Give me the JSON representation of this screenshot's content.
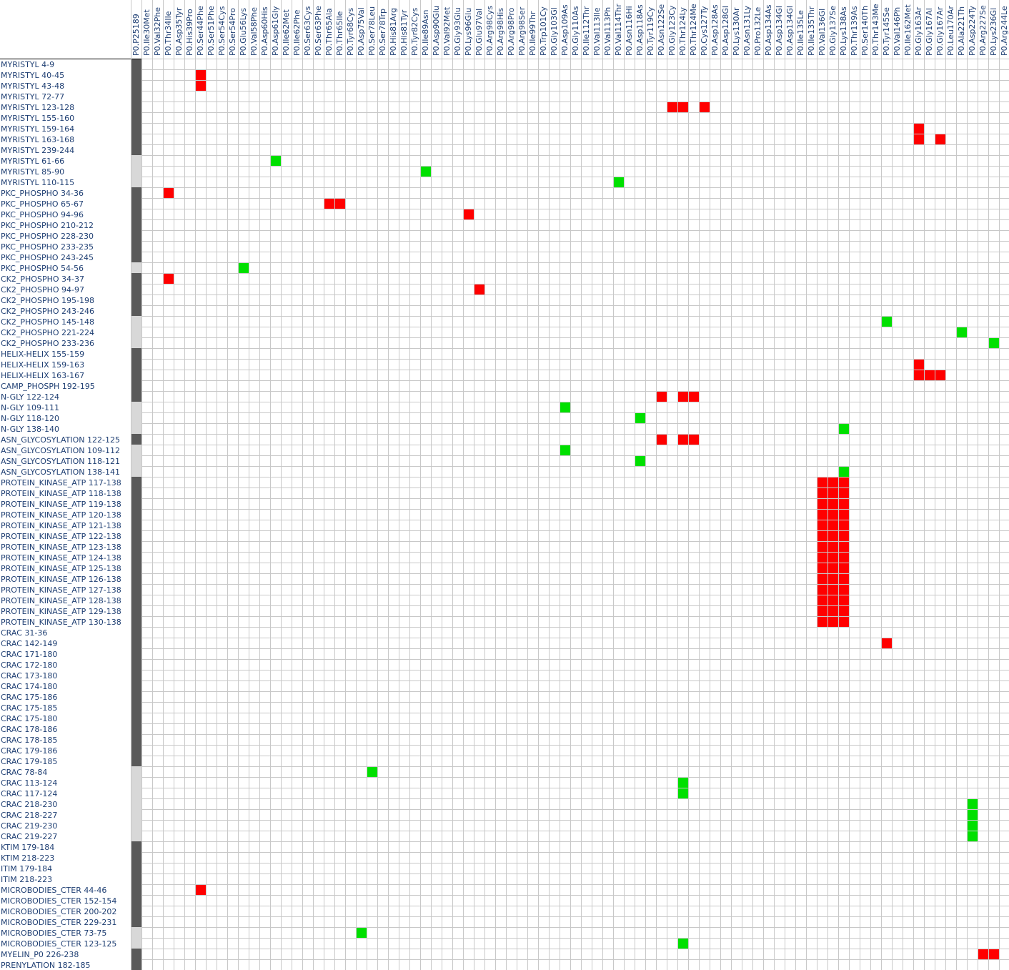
{
  "chart_data": {
    "type": "heatmap",
    "colors": {
      "red": "#ff0000",
      "green": "#00e000",
      "grid": "#c8c8c8",
      "marker_dark": "#5a5a5a",
      "marker_light": "#d8d8d8",
      "label": "#1f3f73"
    },
    "columns": [
      "P0.P25189",
      "P0.Ile30Met",
      "P0.Val32Phe",
      "P0.Thr34Ile",
      "P0.Asp35Tyr",
      "P0.His39Pro",
      "P0.Ser44Phe",
      "P0.Ser51Phe",
      "P0.Ser54Cys",
      "P0.Ser54Pro",
      "P0.Glu56Lys",
      "P0.Val58Phe",
      "P0.Asp60His",
      "P0.Asp61Gly",
      "P0.Ile62Met",
      "P0.Ile62Phe",
      "P0.Ser63Cys",
      "P0.Ser63Phe",
      "P0.Thr65Ala",
      "P0.Thr65Ile",
      "P0.Tyr68Cys",
      "P0.Asp75Val",
      "P0.Ser78Leu",
      "P0.Ser78Trp",
      "P0.His81Arg",
      "P0.His81Tyr",
      "P0.Tyr82Cys",
      "P0.Ile89Asn",
      "P0.Asp90Glu",
      "P0.Val92Met",
      "P0.Gly93Glu",
      "P0.Lys96Glu",
      "P0.Glu97Val",
      "P0.Arg98Cys",
      "P0.Arg98His",
      "P0.Arg98Pro",
      "P0.Arg98Ser",
      "P0.Ile99Thr",
      "P0.Trp101Cy",
      "P0.Gly103Gl",
      "P0.Asp109As",
      "P0.Gly110As",
      "P0.Ile112Thr",
      "P0.Val113Ile",
      "P0.Val113Ph",
      "P0.Val114Thr",
      "P0.Asn116Hi",
      "P0.Asp118As",
      "P0.Tyr119Cy",
      "P0.Asn122Se",
      "P0.Gly123Cy",
      "P0.Thr124Ly",
      "P0.Thr124Me",
      "P0.Cys127Ty",
      "P0.Asp128As",
      "P0.Asp128Gl",
      "P0.Lys130Ar",
      "P0.Asn131Ly",
      "P0.Pro132Le",
      "P0.Asp134As",
      "P0.Asp134Gl",
      "P0.Asp134Gl",
      "P0.Ile135Le",
      "P0.Ile135Thr",
      "P0.Val136Gl",
      "P0.Gly137Se",
      "P0.Lys138As",
      "P0.Thr139As",
      "P0.Ser140Th",
      "P0.Thr143Me",
      "P0.Tyr145Se",
      "P0.Val146Ph",
      "P0.Ile162Met",
      "P0.Gly163Ar",
      "P0.Gly167Al",
      "P0.Gly167Ar",
      "P0.Leu170Ar",
      "P0.Ala221Th",
      "P0.Asp224Ty",
      "P0.Arg227Se",
      "P0.Lys236Gl",
      "P0.Arg244Le"
    ],
    "rows": [
      {
        "label": "MYRISTYL 4-9",
        "marker": "dark",
        "red": [],
        "green": []
      },
      {
        "label": "MYRISTYL 40-45",
        "marker": "dark",
        "red": [
          6
        ],
        "green": []
      },
      {
        "label": "MYRISTYL 43-48",
        "marker": "dark",
        "red": [
          6
        ],
        "green": []
      },
      {
        "label": "MYRISTYL 72-77",
        "marker": "dark",
        "red": [],
        "green": []
      },
      {
        "label": "MYRISTYL 123-128",
        "marker": "dark",
        "red": [
          50,
          51,
          53
        ],
        "green": []
      },
      {
        "label": "MYRISTYL 155-160",
        "marker": "dark",
        "red": [],
        "green": []
      },
      {
        "label": "MYRISTYL 159-164",
        "marker": "dark",
        "red": [
          73
        ],
        "green": []
      },
      {
        "label": "MYRISTYL 163-168",
        "marker": "dark",
        "red": [
          73,
          75
        ],
        "green": []
      },
      {
        "label": "MYRISTYL 239-244",
        "marker": "dark",
        "red": [],
        "green": []
      },
      {
        "label": "MYRISTYL 61-66",
        "marker": "light",
        "red": [],
        "green": [
          13
        ]
      },
      {
        "label": "MYRISTYL 85-90",
        "marker": "light",
        "red": [],
        "green": [
          27
        ]
      },
      {
        "label": "MYRISTYL 110-115",
        "marker": "light",
        "red": [],
        "green": [
          45
        ]
      },
      {
        "label": "PKC_PHOSPHO 34-36",
        "marker": "dark",
        "red": [
          3
        ],
        "green": []
      },
      {
        "label": "PKC_PHOSPHO 65-67",
        "marker": "dark",
        "red": [
          18,
          19
        ],
        "green": []
      },
      {
        "label": "PKC_PHOSPHO 94-96",
        "marker": "dark",
        "red": [
          31
        ],
        "green": []
      },
      {
        "label": "PKC_PHOSPHO 210-212",
        "marker": "dark",
        "red": [],
        "green": []
      },
      {
        "label": "PKC_PHOSPHO 228-230",
        "marker": "dark",
        "red": [],
        "green": []
      },
      {
        "label": "PKC_PHOSPHO 233-235",
        "marker": "dark",
        "red": [],
        "green": []
      },
      {
        "label": "PKC_PHOSPHO 243-245",
        "marker": "dark",
        "red": [],
        "green": []
      },
      {
        "label": "PKC_PHOSPHO 54-56",
        "marker": "light",
        "red": [],
        "green": [
          10
        ]
      },
      {
        "label": "CK2_PHOSPHO 34-37",
        "marker": "dark",
        "red": [
          3
        ],
        "green": []
      },
      {
        "label": "CK2_PHOSPHO 94-97",
        "marker": "dark",
        "red": [
          32
        ],
        "green": []
      },
      {
        "label": "CK2_PHOSPHO 195-198",
        "marker": "dark",
        "red": [],
        "green": []
      },
      {
        "label": "CK2_PHOSPHO 243-246",
        "marker": "dark",
        "red": [],
        "green": []
      },
      {
        "label": "CK2_PHOSPHO 145-148",
        "marker": "light",
        "red": [],
        "green": [
          70
        ]
      },
      {
        "label": "CK2_PHOSPHO 221-224",
        "marker": "light",
        "red": [],
        "green": [
          77
        ]
      },
      {
        "label": "CK2_PHOSPHO 233-236",
        "marker": "light",
        "red": [],
        "green": [
          80
        ]
      },
      {
        "label": "HELIX-HELIX 155-159",
        "marker": "dark",
        "red": [],
        "green": []
      },
      {
        "label": "HELIX-HELIX 159-163",
        "marker": "dark",
        "red": [
          73
        ],
        "green": []
      },
      {
        "label": "HELIX-HELIX 163-167",
        "marker": "dark",
        "red": [
          73,
          74,
          75
        ],
        "green": []
      },
      {
        "label": "CAMP_PHOSPH 192-195",
        "marker": "dark",
        "red": [],
        "green": []
      },
      {
        "label": "N-GLY  122-124",
        "marker": "dark",
        "red": [
          49,
          51,
          52
        ],
        "green": []
      },
      {
        "label": "N-GLY  109-111",
        "marker": "light",
        "red": [],
        "green": [
          40
        ]
      },
      {
        "label": "N-GLY  118-120",
        "marker": "light",
        "red": [],
        "green": [
          47
        ]
      },
      {
        "label": "N-GLY  138-140",
        "marker": "light",
        "red": [],
        "green": [
          66
        ]
      },
      {
        "label": "ASN_GLYCOSYLATION 122-125",
        "marker": "dark",
        "red": [
          49,
          51,
          52
        ],
        "green": []
      },
      {
        "label": "ASN_GLYCOSYLATION 109-112",
        "marker": "light",
        "red": [],
        "green": [
          40
        ]
      },
      {
        "label": "ASN_GLYCOSYLATION 118-121",
        "marker": "light",
        "red": [],
        "green": [
          47
        ]
      },
      {
        "label": "ASN_GLYCOSYLATION 138-141",
        "marker": "light",
        "red": [],
        "green": [
          66
        ]
      },
      {
        "label": "PROTEIN_KINASE_ATP 117-138",
        "marker": "dark",
        "red": [
          64,
          65,
          66
        ],
        "green": []
      },
      {
        "label": "PROTEIN_KINASE_ATP 118-138",
        "marker": "dark",
        "red": [
          64,
          65,
          66
        ],
        "green": []
      },
      {
        "label": "PROTEIN_KINASE_ATP 119-138",
        "marker": "dark",
        "red": [
          64,
          65,
          66
        ],
        "green": []
      },
      {
        "label": "PROTEIN_KINASE_ATP 120-138",
        "marker": "dark",
        "red": [
          64,
          65,
          66
        ],
        "green": []
      },
      {
        "label": "PROTEIN_KINASE_ATP 121-138",
        "marker": "dark",
        "red": [
          64,
          65,
          66
        ],
        "green": []
      },
      {
        "label": "PROTEIN_KINASE_ATP 122-138",
        "marker": "dark",
        "red": [
          64,
          65,
          66
        ],
        "green": []
      },
      {
        "label": "PROTEIN_KINASE_ATP 123-138",
        "marker": "dark",
        "red": [
          64,
          65,
          66
        ],
        "green": []
      },
      {
        "label": "PROTEIN_KINASE_ATP 124-138",
        "marker": "dark",
        "red": [
          64,
          65,
          66
        ],
        "green": []
      },
      {
        "label": "PROTEIN_KINASE_ATP 125-138",
        "marker": "dark",
        "red": [
          64,
          65,
          66
        ],
        "green": []
      },
      {
        "label": "PROTEIN_KINASE_ATP 126-138",
        "marker": "dark",
        "red": [
          64,
          65,
          66
        ],
        "green": []
      },
      {
        "label": "PROTEIN_KINASE_ATP 127-138",
        "marker": "dark",
        "red": [
          64,
          65,
          66
        ],
        "green": []
      },
      {
        "label": "PROTEIN_KINASE_ATP 128-138",
        "marker": "dark",
        "red": [
          64,
          65,
          66
        ],
        "green": []
      },
      {
        "label": "PROTEIN_KINASE_ATP 129-138",
        "marker": "dark",
        "red": [
          64,
          65,
          66
        ],
        "green": []
      },
      {
        "label": "PROTEIN_KINASE_ATP 130-138",
        "marker": "dark",
        "red": [
          64,
          65,
          66
        ],
        "green": []
      },
      {
        "label": "CRAC 31-36",
        "marker": "dark",
        "red": [],
        "green": []
      },
      {
        "label": "CRAC 142-149",
        "marker": "dark",
        "red": [
          70
        ],
        "green": []
      },
      {
        "label": "CRAC 171-180",
        "marker": "dark",
        "red": [],
        "green": []
      },
      {
        "label": "CRAC 172-180",
        "marker": "dark",
        "red": [],
        "green": []
      },
      {
        "label": "CRAC 173-180",
        "marker": "dark",
        "red": [],
        "green": []
      },
      {
        "label": "CRAC 174-180",
        "marker": "dark",
        "red": [],
        "green": []
      },
      {
        "label": "CRAC 175-186",
        "marker": "dark",
        "red": [],
        "green": []
      },
      {
        "label": "CRAC 175-185",
        "marker": "dark",
        "red": [],
        "green": []
      },
      {
        "label": "CRAC 175-180",
        "marker": "dark",
        "red": [],
        "green": []
      },
      {
        "label": "CRAC 178-186",
        "marker": "dark",
        "red": [],
        "green": []
      },
      {
        "label": "CRAC 178-185",
        "marker": "dark",
        "red": [],
        "green": []
      },
      {
        "label": "CRAC 179-186",
        "marker": "dark",
        "red": [],
        "green": []
      },
      {
        "label": "CRAC 179-185",
        "marker": "dark",
        "red": [],
        "green": []
      },
      {
        "label": "CRAC 78-84",
        "marker": "light",
        "red": [],
        "green": [
          22
        ]
      },
      {
        "label": "CRAC 113-124",
        "marker": "light",
        "red": [],
        "green": [
          51
        ]
      },
      {
        "label": "CRAC 117-124",
        "marker": "light",
        "red": [],
        "green": [
          51
        ]
      },
      {
        "label": "CRAC 218-230",
        "marker": "light",
        "red": [],
        "green": [
          78
        ]
      },
      {
        "label": "CRAC 218-227",
        "marker": "light",
        "red": [],
        "green": [
          78
        ]
      },
      {
        "label": "CRAC 219-230",
        "marker": "light",
        "red": [],
        "green": [
          78
        ]
      },
      {
        "label": "CRAC 219-227",
        "marker": "light",
        "red": [],
        "green": [
          78
        ]
      },
      {
        "label": "KTIM 179-184",
        "marker": "dark",
        "red": [],
        "green": []
      },
      {
        "label": "KTIM 218-223",
        "marker": "dark",
        "red": [],
        "green": []
      },
      {
        "label": "ITIM 179-184",
        "marker": "dark",
        "red": [],
        "green": []
      },
      {
        "label": "ITIM 218-223",
        "marker": "dark",
        "red": [],
        "green": []
      },
      {
        "label": "MICROBODIES_CTER 44-46",
        "marker": "dark",
        "red": [
          6
        ],
        "green": []
      },
      {
        "label": "MICROBODIES_CTER 152-154",
        "marker": "dark",
        "red": [],
        "green": []
      },
      {
        "label": "MICROBODIES_CTER 200-202",
        "marker": "dark",
        "red": [],
        "green": []
      },
      {
        "label": "MICROBODIES_CTER 229-231",
        "marker": "dark",
        "red": [],
        "green": []
      },
      {
        "label": "MICROBODIES_CTER 73-75",
        "marker": "light",
        "red": [],
        "green": [
          21
        ]
      },
      {
        "label": "MICROBODIES_CTER 123-125",
        "marker": "light",
        "red": [],
        "green": [
          51
        ]
      },
      {
        "label": "MYELIN_P0 226-238",
        "marker": "dark",
        "red": [
          79,
          80
        ],
        "green": []
      },
      {
        "label": "PRENYLATION 182-185",
        "marker": "dark",
        "red": [],
        "green": []
      }
    ]
  }
}
